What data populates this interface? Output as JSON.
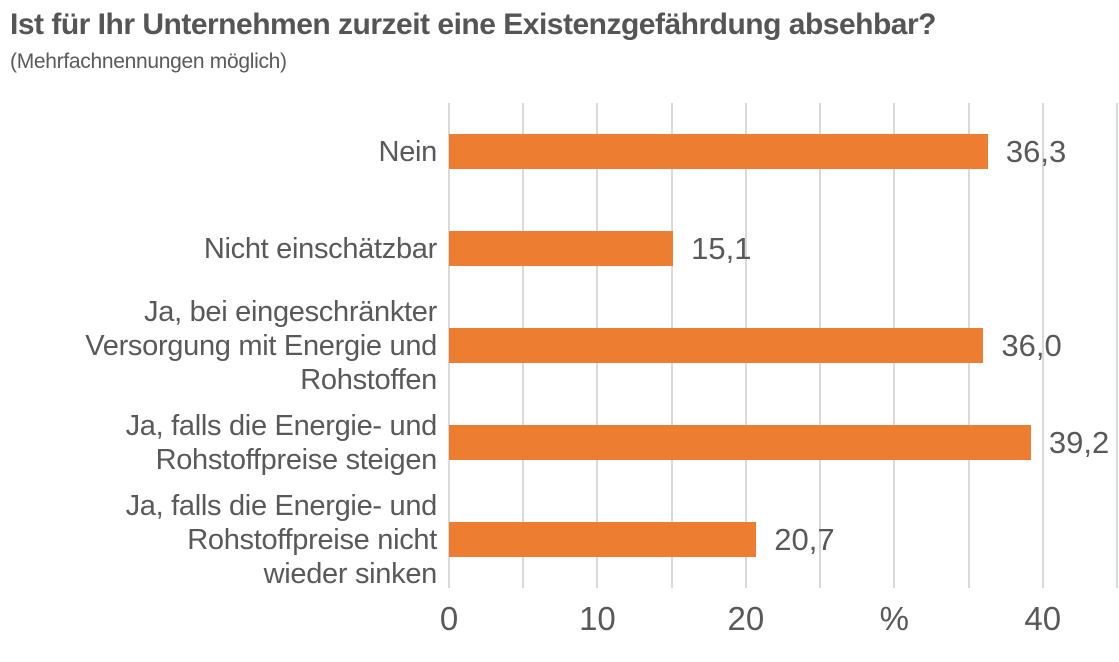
{
  "title": "Ist für Ihr Unternehmen zurzeit eine Existenzgefährdung absehbar?",
  "subtitle": "(Mehrfachnennungen möglich)",
  "colors": {
    "bar": "#ed7d31",
    "grid": "#d9d9d9",
    "text": "#595959",
    "title_text": "#555555"
  },
  "chart_data": {
    "type": "bar",
    "orientation": "horizontal",
    "title": "Ist für Ihr Unternehmen zurzeit eine Existenzgefährdung absehbar?",
    "subtitle": "(Mehrfachnennungen möglich)",
    "categories": [
      "Nein",
      "Nicht einschätzbar",
      "Ja, bei eingeschränkter Versorgung mit Energie und Rohstoffen",
      "Ja, falls die Energie- und Rohstoffpreise steigen",
      "Ja, falls die Energie- und Rohstoffpreise nicht wieder sinken"
    ],
    "category_lines": [
      [
        "Nein"
      ],
      [
        "Nicht einschätzbar"
      ],
      [
        "Ja, bei eingeschränkter",
        "Versorgung mit Energie und",
        "Rohstoffen"
      ],
      [
        "Ja, falls die Energie- und",
        "Rohstoffpreise steigen"
      ],
      [
        "Ja, falls die Energie- und",
        "Rohstoffpreise nicht",
        "wieder sinken"
      ]
    ],
    "values": [
      36.3,
      15.1,
      36.0,
      39.2,
      20.7
    ],
    "value_labels": [
      "36,3",
      "15,1",
      "36,0",
      "39,2",
      "20,7"
    ],
    "unit": "%",
    "xlim": [
      0,
      45
    ],
    "gridline_step": 5,
    "grid": true,
    "legend": false,
    "x_ticks": [
      {
        "value": 0,
        "label": "0"
      },
      {
        "value": 10,
        "label": "10"
      },
      {
        "value": 20,
        "label": "20"
      },
      {
        "value": 30,
        "label": "%"
      },
      {
        "value": 40,
        "label": "40"
      }
    ]
  }
}
